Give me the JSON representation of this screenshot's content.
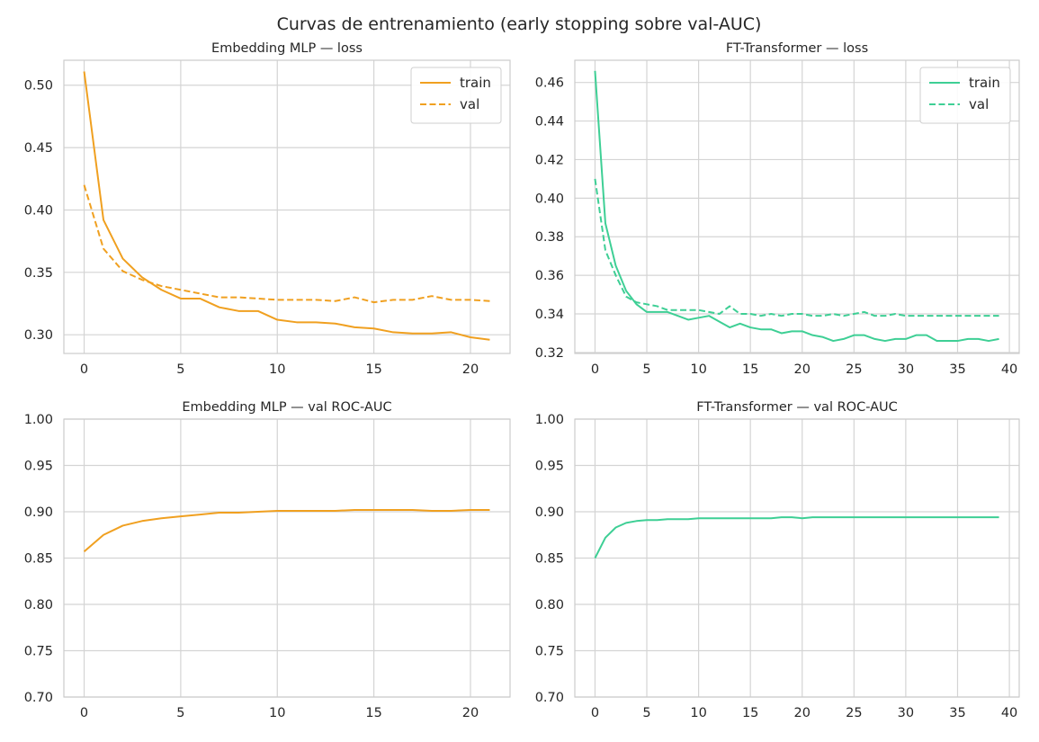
{
  "figure": {
    "suptitle": "Curvas de entrenamiento (early stopping sobre val-AUC)"
  },
  "chart_data": [
    {
      "id": "mlp_loss",
      "type": "line",
      "title": "Embedding MLP — loss",
      "xlabel": "",
      "ylabel": "",
      "xlim": [
        -1.05,
        22.05
      ],
      "ylim": [
        0.285,
        0.52
      ],
      "xticks": [
        0,
        5,
        10,
        15,
        20
      ],
      "yticks": [
        0.3,
        0.35,
        0.4,
        0.45,
        0.5
      ],
      "ytick_labels": [
        "0.30",
        "0.35",
        "0.40",
        "0.45",
        "0.50"
      ],
      "grid": true,
      "legend": "top-right",
      "color": "#f0a020",
      "series": [
        {
          "name": "train",
          "dash": "solid",
          "x": [
            0,
            1,
            2,
            3,
            4,
            5,
            6,
            7,
            8,
            9,
            10,
            11,
            12,
            13,
            14,
            15,
            16,
            17,
            18,
            19,
            20,
            21
          ],
          "y": [
            0.511,
            0.392,
            0.361,
            0.346,
            0.336,
            0.329,
            0.329,
            0.322,
            0.319,
            0.319,
            0.312,
            0.31,
            0.31,
            0.309,
            0.306,
            0.305,
            0.302,
            0.301,
            0.301,
            0.302,
            0.298,
            0.296
          ]
        },
        {
          "name": "val",
          "dash": "dashed",
          "x": [
            0,
            1,
            2,
            3,
            4,
            5,
            6,
            7,
            8,
            9,
            10,
            11,
            12,
            13,
            14,
            15,
            16,
            17,
            18,
            19,
            20,
            21
          ],
          "y": [
            0.42,
            0.369,
            0.351,
            0.344,
            0.339,
            0.336,
            0.333,
            0.33,
            0.33,
            0.329,
            0.328,
            0.328,
            0.328,
            0.327,
            0.33,
            0.326,
            0.328,
            0.328,
            0.331,
            0.328,
            0.328,
            0.327
          ]
        }
      ]
    },
    {
      "id": "ft_loss",
      "type": "line",
      "title": "FT-Transformer — loss",
      "xlabel": "",
      "ylabel": "",
      "xlim": [
        -1.95,
        40.95
      ],
      "ylim": [
        0.3195,
        0.4715
      ],
      "xticks": [
        0,
        5,
        10,
        15,
        20,
        25,
        30,
        35,
        40
      ],
      "yticks": [
        0.32,
        0.34,
        0.36,
        0.38,
        0.4,
        0.42,
        0.44,
        0.46
      ],
      "ytick_labels": [
        "0.32",
        "0.34",
        "0.36",
        "0.38",
        "0.40",
        "0.42",
        "0.44",
        "0.46"
      ],
      "grid": true,
      "legend": "top-right",
      "color": "#3ecf95",
      "series": [
        {
          "name": "train",
          "dash": "solid",
          "x": [
            0,
            1,
            2,
            3,
            4,
            5,
            6,
            7,
            8,
            9,
            10,
            11,
            12,
            13,
            14,
            15,
            16,
            17,
            18,
            19,
            20,
            21,
            22,
            23,
            24,
            25,
            26,
            27,
            28,
            29,
            30,
            31,
            32,
            33,
            34,
            35,
            36,
            37,
            38,
            39
          ],
          "y": [
            0.466,
            0.387,
            0.365,
            0.352,
            0.345,
            0.341,
            0.341,
            0.341,
            0.339,
            0.337,
            0.338,
            0.339,
            0.336,
            0.333,
            0.335,
            0.333,
            0.332,
            0.332,
            0.33,
            0.331,
            0.331,
            0.329,
            0.328,
            0.326,
            0.327,
            0.329,
            0.329,
            0.327,
            0.326,
            0.327,
            0.327,
            0.329,
            0.329,
            0.326,
            0.326,
            0.326,
            0.327,
            0.327,
            0.326,
            0.327
          ]
        },
        {
          "name": "val",
          "dash": "dashed",
          "x": [
            0,
            1,
            2,
            3,
            4,
            5,
            6,
            7,
            8,
            9,
            10,
            11,
            12,
            13,
            14,
            15,
            16,
            17,
            18,
            19,
            20,
            21,
            22,
            23,
            24,
            25,
            26,
            27,
            28,
            29,
            30,
            31,
            32,
            33,
            34,
            35,
            36,
            37,
            38,
            39
          ],
          "y": [
            0.41,
            0.373,
            0.36,
            0.349,
            0.346,
            0.345,
            0.344,
            0.342,
            0.342,
            0.342,
            0.342,
            0.341,
            0.34,
            0.344,
            0.34,
            0.34,
            0.339,
            0.34,
            0.339,
            0.34,
            0.34,
            0.339,
            0.339,
            0.34,
            0.339,
            0.34,
            0.341,
            0.339,
            0.339,
            0.34,
            0.339,
            0.339,
            0.339,
            0.339,
            0.339,
            0.339,
            0.339,
            0.339,
            0.339,
            0.339
          ]
        }
      ]
    },
    {
      "id": "mlp_auc",
      "type": "line",
      "title": "Embedding MLP — val ROC-AUC",
      "xlabel": "",
      "ylabel": "",
      "xlim": [
        -1.05,
        22.05
      ],
      "ylim": [
        0.7,
        1.0
      ],
      "xticks": [
        0,
        5,
        10,
        15,
        20
      ],
      "yticks": [
        0.7,
        0.75,
        0.8,
        0.85,
        0.9,
        0.95,
        1.0
      ],
      "ytick_labels": [
        "0.70",
        "0.75",
        "0.80",
        "0.85",
        "0.90",
        "0.95",
        "1.00"
      ],
      "grid": true,
      "color": "#f0a020",
      "series": [
        {
          "dash": "solid",
          "x": [
            0,
            1,
            2,
            3,
            4,
            5,
            6,
            7,
            8,
            9,
            10,
            11,
            12,
            13,
            14,
            15,
            16,
            17,
            18,
            19,
            20,
            21
          ],
          "y": [
            0.857,
            0.875,
            0.885,
            0.89,
            0.893,
            0.895,
            0.897,
            0.899,
            0.899,
            0.9,
            0.901,
            0.901,
            0.901,
            0.901,
            0.902,
            0.902,
            0.902,
            0.902,
            0.901,
            0.901,
            0.902,
            0.902
          ]
        }
      ]
    },
    {
      "id": "ft_auc",
      "type": "line",
      "title": "FT-Transformer — val ROC-AUC",
      "xlabel": "",
      "ylabel": "",
      "xlim": [
        -1.95,
        40.95
      ],
      "ylim": [
        0.7,
        1.0
      ],
      "xticks": [
        0,
        5,
        10,
        15,
        20,
        25,
        30,
        35,
        40
      ],
      "yticks": [
        0.7,
        0.75,
        0.8,
        0.85,
        0.9,
        0.95,
        1.0
      ],
      "ytick_labels": [
        "0.70",
        "0.75",
        "0.80",
        "0.85",
        "0.90",
        "0.95",
        "1.00"
      ],
      "grid": true,
      "color": "#3ecf95",
      "series": [
        {
          "dash": "solid",
          "x": [
            0,
            1,
            2,
            3,
            4,
            5,
            6,
            7,
            8,
            9,
            10,
            11,
            12,
            13,
            14,
            15,
            16,
            17,
            18,
            19,
            20,
            21,
            22,
            23,
            24,
            25,
            26,
            27,
            28,
            29,
            30,
            31,
            32,
            33,
            34,
            35,
            36,
            37,
            38,
            39
          ],
          "y": [
            0.85,
            0.872,
            0.883,
            0.888,
            0.89,
            0.891,
            0.891,
            0.892,
            0.892,
            0.892,
            0.893,
            0.893,
            0.893,
            0.893,
            0.893,
            0.893,
            0.893,
            0.893,
            0.894,
            0.894,
            0.893,
            0.894,
            0.894,
            0.894,
            0.894,
            0.894,
            0.894,
            0.894,
            0.894,
            0.894,
            0.894,
            0.894,
            0.894,
            0.894,
            0.894,
            0.894,
            0.894,
            0.894,
            0.894,
            0.894
          ]
        }
      ]
    }
  ]
}
